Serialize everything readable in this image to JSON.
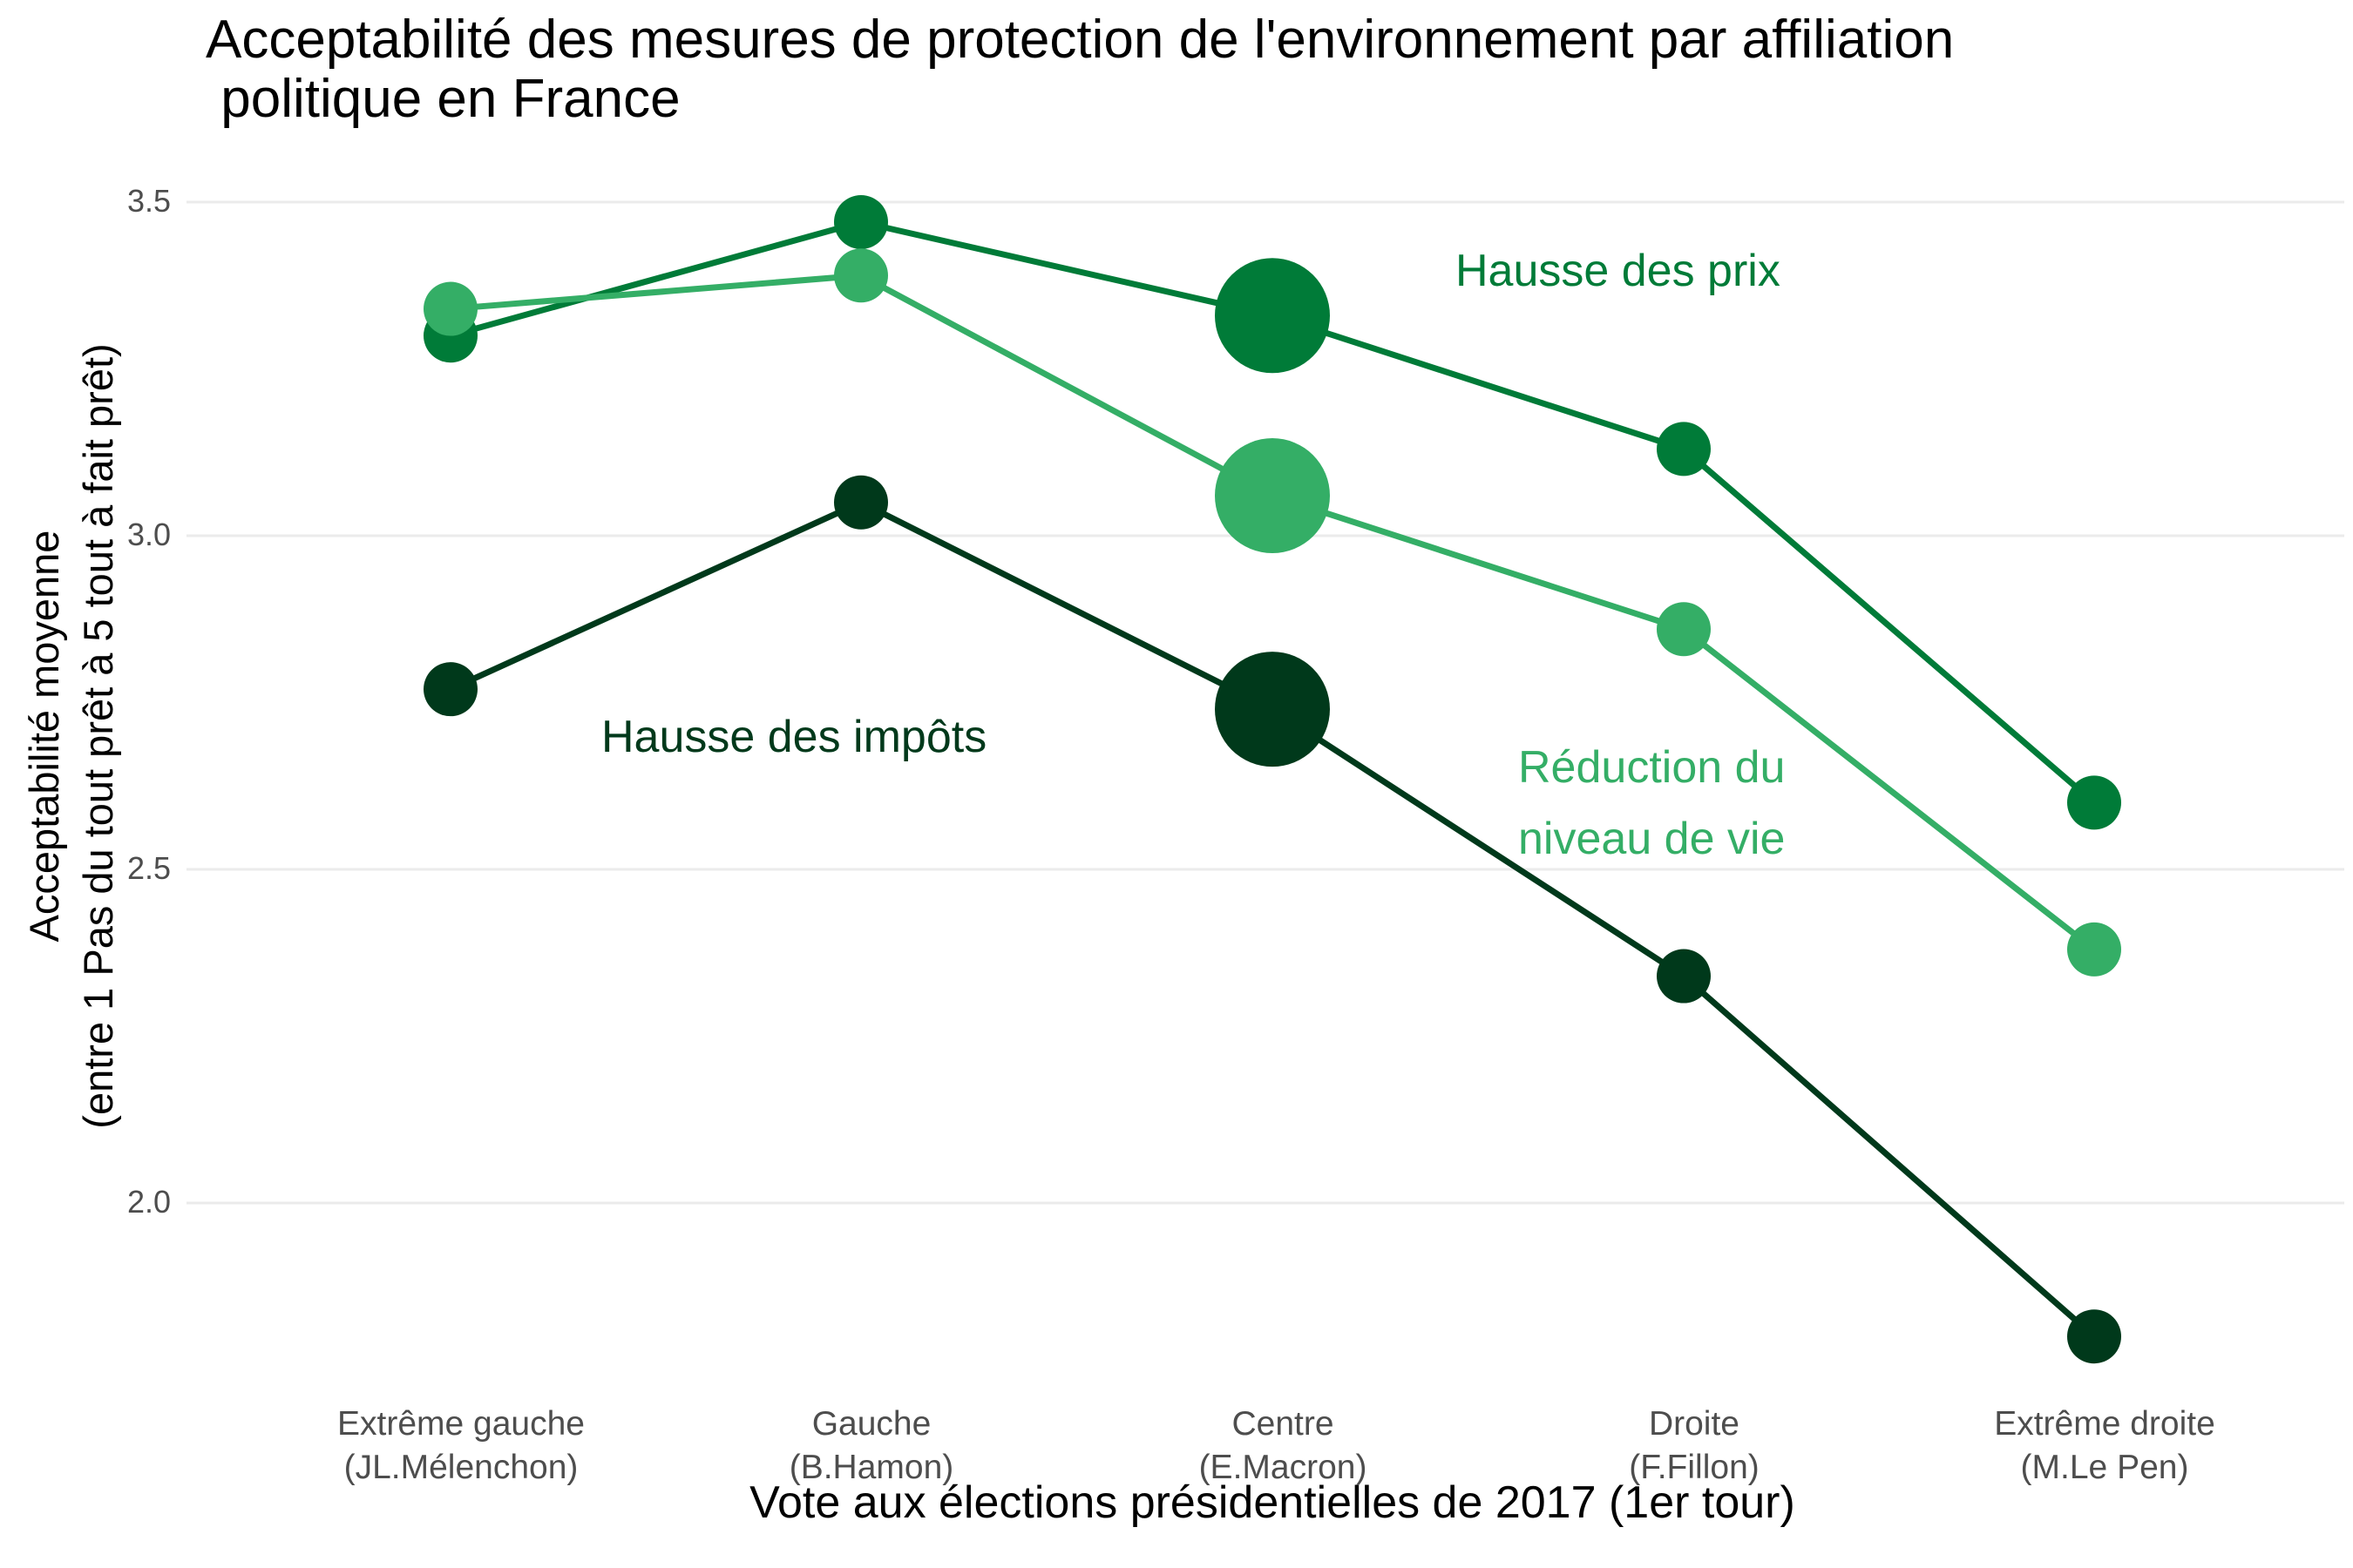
{
  "chart_data": {
    "type": "line",
    "title": "Acceptabilité des mesures de protection de l'environnement par affiliation\n politique en France",
    "xlabel": "Vote aux élections présidentielles de 2017 (1er tour)",
    "ylabel": "Acceptabilité moyenne\n(entre 1 Pas du tout prêt à 5 tout à fait prêt)",
    "categories": [
      "Extrême gauche\n(JL.Mélenchon)",
      "Gauche\n(B.Hamon)",
      "Centre\n(E.Macron)",
      "Droite\n(F.Fillon)",
      "Extrême droite\n(M.Le Pen)"
    ],
    "ylim": [
      1.72,
      3.6
    ],
    "yticks": [
      "2.0",
      "2.5",
      "3.0",
      "3.5"
    ],
    "grid": true,
    "legend": "none",
    "series": [
      {
        "name": "Hausse des prix",
        "color": "#007b38",
        "values": [
          3.3,
          3.47,
          3.33,
          3.13,
          2.6
        ],
        "weights": [
          1,
          1,
          3,
          1,
          1
        ]
      },
      {
        "name": "Réduction du\nniveau de vie",
        "color": "#34ae66",
        "values": [
          3.34,
          3.39,
          3.06,
          2.86,
          2.38
        ],
        "weights": [
          1,
          1,
          3,
          1,
          1
        ]
      },
      {
        "name": "Hausse des impôts",
        "color": "#00391b",
        "values": [
          2.77,
          3.05,
          2.74,
          2.34,
          1.8
        ],
        "weights": [
          1,
          1,
          3,
          1,
          1
        ]
      }
    ]
  }
}
